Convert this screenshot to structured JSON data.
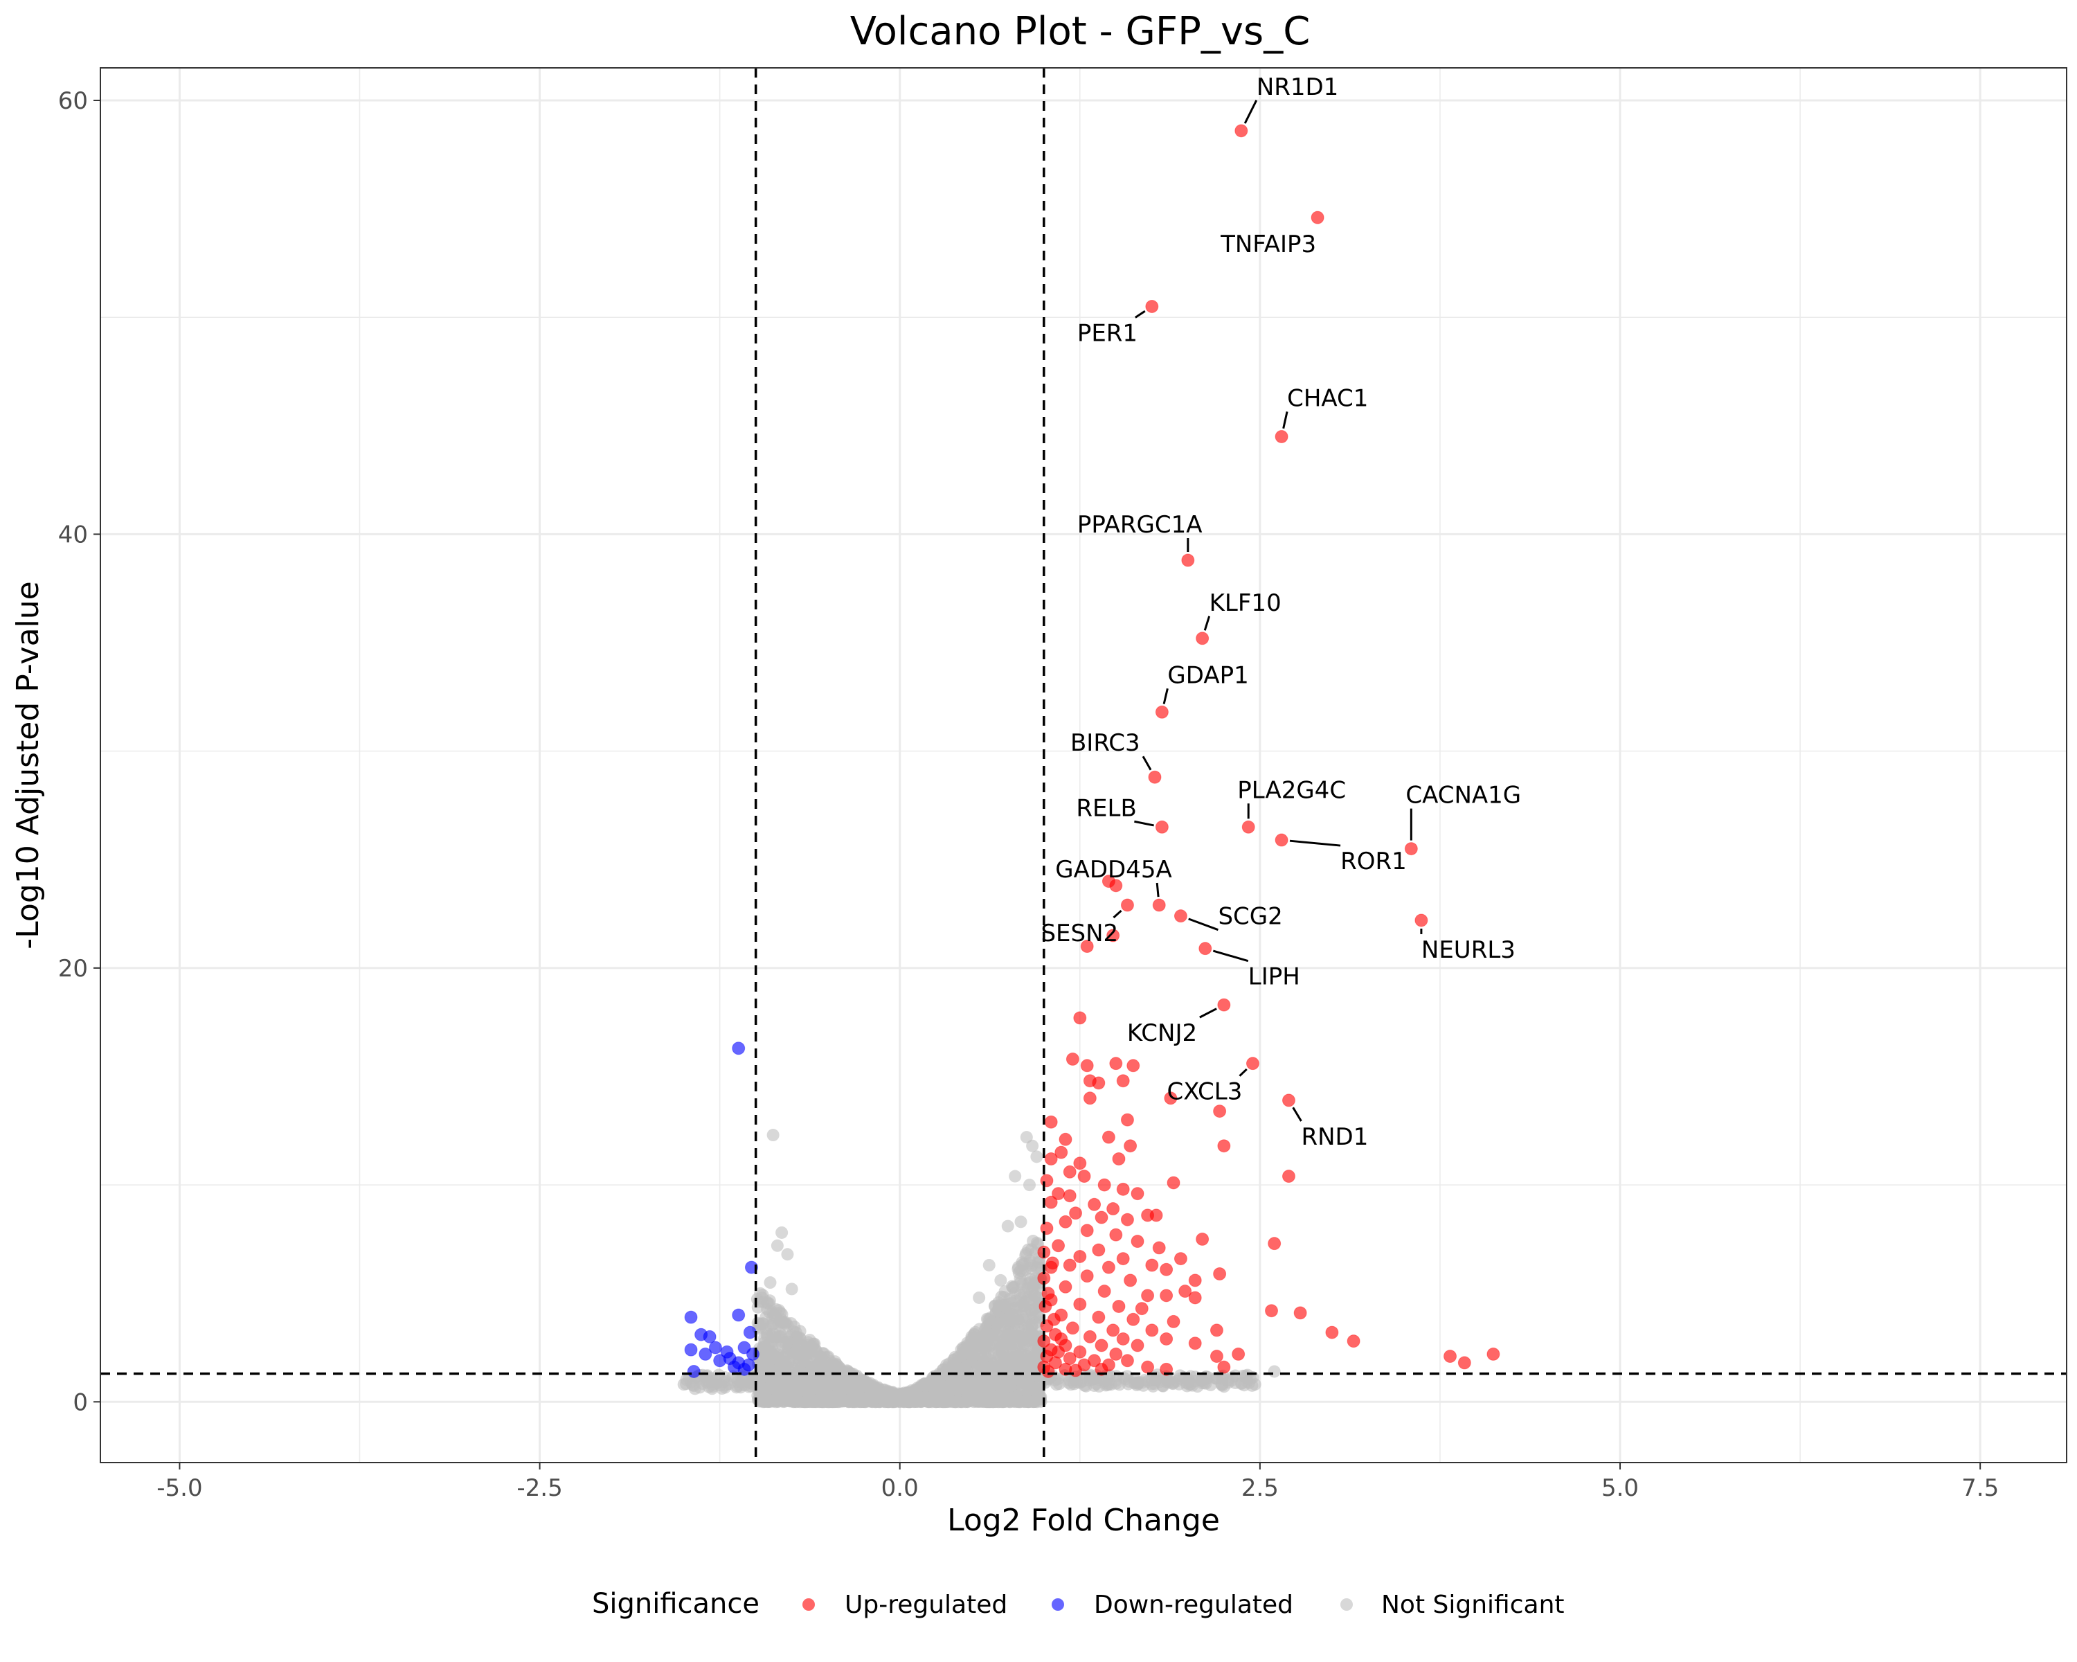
{
  "chart_data": {
    "type": "scatter",
    "title": "Volcano Plot - GFP_vs_C",
    "xlabel": "Log2 Fold Change",
    "ylabel": "-Log10 Adjusted P-value",
    "xlim": [
      -5.55,
      8.1
    ],
    "ylim": [
      -2.8,
      61.5
    ],
    "xticks": [
      -5.0,
      -2.5,
      0.0,
      2.5,
      5.0,
      7.5
    ],
    "xtick_labels": [
      "-5.0",
      "-2.5",
      "0.0",
      "2.5",
      "5.0",
      "7.5"
    ],
    "yticks": [
      0,
      20,
      40,
      60
    ],
    "ytick_labels": [
      "0",
      "20",
      "40",
      "60"
    ],
    "thresholds": {
      "fold_change": [
        -1,
        1
      ],
      "neg_log10_padj": 1.3
    },
    "grid": true,
    "legend": {
      "title": "Significance",
      "position": "bottom",
      "entries": [
        {
          "name": "Up-regulated",
          "color": "#ff0000"
        },
        {
          "name": "Down-regulated",
          "color": "#0000ff"
        },
        {
          "name": "Not Significant",
          "color": "#bebebe"
        }
      ]
    },
    "series": [
      {
        "name": "Up-regulated",
        "color": "#ff0000",
        "points": [
          [
            2.37,
            58.6
          ],
          [
            2.9,
            54.6
          ],
          [
            1.75,
            50.5
          ],
          [
            2.65,
            44.5
          ],
          [
            2.0,
            38.8
          ],
          [
            2.1,
            35.2
          ],
          [
            1.82,
            31.8
          ],
          [
            1.77,
            28.8
          ],
          [
            1.82,
            26.5
          ],
          [
            2.42,
            26.5
          ],
          [
            2.65,
            25.9
          ],
          [
            3.55,
            25.5
          ],
          [
            1.45,
            24.0
          ],
          [
            1.5,
            23.8
          ],
          [
            1.8,
            22.9
          ],
          [
            1.58,
            22.9
          ],
          [
            3.62,
            22.2
          ],
          [
            1.95,
            22.4
          ],
          [
            1.48,
            21.5
          ],
          [
            1.3,
            21.0
          ],
          [
            2.12,
            20.9
          ],
          [
            2.25,
            18.3
          ],
          [
            1.25,
            17.7
          ],
          [
            2.45,
            15.6
          ],
          [
            1.2,
            15.8
          ],
          [
            1.3,
            15.5
          ],
          [
            1.5,
            15.6
          ],
          [
            1.62,
            15.5
          ],
          [
            1.32,
            14.8
          ],
          [
            1.38,
            14.7
          ],
          [
            1.55,
            14.8
          ],
          [
            1.32,
            14.0
          ],
          [
            1.88,
            14.0
          ],
          [
            2.7,
            13.9
          ],
          [
            2.22,
            13.4
          ],
          [
            1.05,
            12.9
          ],
          [
            1.58,
            13.0
          ],
          [
            1.15,
            12.1
          ],
          [
            1.45,
            12.2
          ],
          [
            1.12,
            11.5
          ],
          [
            1.6,
            11.8
          ],
          [
            2.25,
            11.8
          ],
          [
            1.05,
            11.2
          ],
          [
            1.25,
            11.0
          ],
          [
            1.52,
            11.2
          ],
          [
            1.18,
            10.6
          ],
          [
            1.28,
            10.4
          ],
          [
            2.7,
            10.4
          ],
          [
            1.02,
            10.2
          ],
          [
            1.9,
            10.1
          ],
          [
            1.42,
            10.0
          ],
          [
            1.55,
            9.8
          ],
          [
            1.1,
            9.6
          ],
          [
            1.18,
            9.5
          ],
          [
            1.65,
            9.6
          ],
          [
            1.05,
            9.2
          ],
          [
            1.35,
            9.1
          ],
          [
            1.48,
            8.9
          ],
          [
            1.22,
            8.7
          ],
          [
            1.72,
            8.6
          ],
          [
            1.78,
            8.6
          ],
          [
            1.4,
            8.5
          ],
          [
            1.58,
            8.4
          ],
          [
            1.15,
            8.3
          ],
          [
            1.02,
            8.0
          ],
          [
            1.3,
            7.9
          ],
          [
            1.5,
            7.7
          ],
          [
            2.1,
            7.5
          ],
          [
            1.65,
            7.4
          ],
          [
            2.6,
            7.3
          ],
          [
            1.1,
            7.2
          ],
          [
            1.38,
            7.0
          ],
          [
            1.8,
            7.1
          ],
          [
            1.25,
            6.7
          ],
          [
            1.55,
            6.6
          ],
          [
            1.95,
            6.6
          ],
          [
            1.05,
            6.2
          ],
          [
            1.18,
            6.3
          ],
          [
            1.45,
            6.2
          ],
          [
            1.75,
            6.3
          ],
          [
            1.85,
            6.1
          ],
          [
            2.22,
            5.9
          ],
          [
            1.0,
            5.7
          ],
          [
            1.3,
            5.8
          ],
          [
            1.6,
            5.6
          ],
          [
            2.05,
            5.6
          ],
          [
            1.15,
            5.3
          ],
          [
            1.42,
            5.1
          ],
          [
            1.72,
            4.9
          ],
          [
            1.85,
            4.9
          ],
          [
            1.98,
            5.1
          ],
          [
            2.05,
            4.8
          ],
          [
            1.05,
            4.7
          ],
          [
            1.25,
            4.5
          ],
          [
            1.52,
            4.4
          ],
          [
            1.68,
            4.3
          ],
          [
            2.58,
            4.2
          ],
          [
            2.78,
            4.1
          ],
          [
            1.12,
            4.0
          ],
          [
            1.38,
            3.9
          ],
          [
            1.62,
            3.8
          ],
          [
            1.9,
            3.7
          ],
          [
            1.02,
            3.5
          ],
          [
            1.2,
            3.4
          ],
          [
            1.48,
            3.3
          ],
          [
            1.75,
            3.3
          ],
          [
            2.2,
            3.3
          ],
          [
            3.0,
            3.2
          ],
          [
            1.08,
            3.1
          ],
          [
            1.32,
            3.0
          ],
          [
            1.55,
            2.9
          ],
          [
            1.85,
            2.9
          ],
          [
            3.15,
            2.8
          ],
          [
            1.0,
            2.8
          ],
          [
            1.15,
            2.6
          ],
          [
            1.4,
            2.6
          ],
          [
            1.65,
            2.6
          ],
          [
            2.05,
            2.7
          ],
          [
            1.05,
            2.4
          ],
          [
            1.25,
            2.3
          ],
          [
            1.5,
            2.2
          ],
          [
            4.12,
            2.2
          ],
          [
            3.82,
            2.1
          ],
          [
            2.2,
            2.1
          ],
          [
            2.35,
            2.2
          ],
          [
            1.02,
            2.1
          ],
          [
            1.18,
            2.0
          ],
          [
            1.35,
            1.9
          ],
          [
            3.92,
            1.8
          ],
          [
            1.58,
            1.9
          ],
          [
            1.08,
            1.8
          ],
          [
            1.28,
            1.7
          ],
          [
            1.45,
            1.7
          ],
          [
            1.72,
            1.6
          ],
          [
            1.85,
            1.5
          ],
          [
            2.25,
            1.6
          ],
          [
            1.0,
            1.6
          ],
          [
            1.15,
            1.5
          ],
          [
            1.22,
            1.45
          ],
          [
            1.4,
            1.5
          ],
          [
            1.03,
            1.4
          ],
          [
            1.1,
            2.3
          ],
          [
            1.12,
            2.9
          ],
          [
            1.07,
            3.8
          ],
          [
            1.01,
            4.4
          ],
          [
            1.03,
            5.0
          ],
          [
            1.06,
            6.4
          ],
          [
            1.0,
            6.9
          ]
        ]
      },
      {
        "name": "Down-regulated",
        "color": "#0000ff",
        "points": [
          [
            -1.12,
            16.3
          ],
          [
            -1.03,
            6.2
          ],
          [
            -1.45,
            3.9
          ],
          [
            -1.12,
            4.0
          ],
          [
            -1.38,
            3.1
          ],
          [
            -1.32,
            3.0
          ],
          [
            -1.04,
            3.2
          ],
          [
            -1.28,
            2.5
          ],
          [
            -1.45,
            2.4
          ],
          [
            -1.2,
            2.3
          ],
          [
            -1.08,
            2.5
          ],
          [
            -1.35,
            2.2
          ],
          [
            -1.18,
            2.0
          ],
          [
            -1.02,
            2.2
          ],
          [
            -1.25,
            1.9
          ],
          [
            -1.12,
            1.8
          ],
          [
            -1.05,
            1.7
          ],
          [
            -1.15,
            1.6
          ],
          [
            -1.43,
            1.4
          ],
          [
            -1.08,
            1.5
          ]
        ]
      }
    ],
    "annotations": [
      {
        "label": "NR1D1",
        "x": 2.37,
        "y": 58.6
      },
      {
        "label": "TNFAIP3",
        "x": 2.9,
        "y": 54.6
      },
      {
        "label": "PER1",
        "x": 1.75,
        "y": 50.5
      },
      {
        "label": "CHAC1",
        "x": 2.65,
        "y": 44.5
      },
      {
        "label": "PPARGC1A",
        "x": 2.0,
        "y": 38.8
      },
      {
        "label": "KLF10",
        "x": 2.1,
        "y": 35.2
      },
      {
        "label": "GDAP1",
        "x": 1.82,
        "y": 31.8
      },
      {
        "label": "BIRC3",
        "x": 1.77,
        "y": 28.8
      },
      {
        "label": "RELB",
        "x": 1.82,
        "y": 26.5
      },
      {
        "label": "PLA2G4C",
        "x": 2.42,
        "y": 26.5
      },
      {
        "label": "CACNA1G",
        "x": 3.55,
        "y": 25.5
      },
      {
        "label": "ROR1",
        "x": 2.65,
        "y": 25.9
      },
      {
        "label": "GADD45A",
        "x": 1.8,
        "y": 22.9
      },
      {
        "label": "SCG2",
        "x": 1.95,
        "y": 22.4
      },
      {
        "label": "SESN2",
        "x": 1.58,
        "y": 22.9
      },
      {
        "label": "NEURL3",
        "x": 3.62,
        "y": 22.2
      },
      {
        "label": "LIPH",
        "x": 2.12,
        "y": 20.9
      },
      {
        "label": "KCNJ2",
        "x": 2.25,
        "y": 18.3
      },
      {
        "label": "CXCL3",
        "x": 2.45,
        "y": 15.6
      },
      {
        "label": "RND1",
        "x": 2.7,
        "y": 13.9
      }
    ],
    "not_significant": {
      "name": "Not Significant",
      "color": "#bebebe",
      "shape": "v-shaped cloud near origin (few thousand genes)",
      "x_range": [
        -1.5,
        3.0
      ],
      "y_max_envelope": 12.3,
      "outliers": [
        [
          -0.88,
          12.3
        ],
        [
          0.88,
          12.2
        ],
        [
          0.92,
          11.8
        ],
        [
          0.95,
          11.3
        ],
        [
          0.8,
          10.4
        ],
        [
          0.9,
          10.0
        ],
        [
          -0.82,
          7.8
        ],
        [
          0.84,
          8.3
        ],
        [
          0.75,
          8.1
        ],
        [
          -0.85,
          7.2
        ],
        [
          -0.78,
          6.8
        ],
        [
          0.62,
          6.3
        ],
        [
          2.6,
          1.4
        ],
        [
          2.4,
          1.2
        ],
        [
          2.2,
          1.1
        ],
        [
          2.0,
          1.0
        ],
        [
          1.9,
          0.9
        ],
        [
          1.7,
          1.0
        ],
        [
          -1.45,
          0.9
        ],
        [
          -1.3,
          0.8
        ],
        [
          -0.9,
          5.5
        ],
        [
          -0.75,
          5.2
        ],
        [
          0.7,
          5.6
        ],
        [
          0.55,
          4.8
        ]
      ]
    }
  }
}
